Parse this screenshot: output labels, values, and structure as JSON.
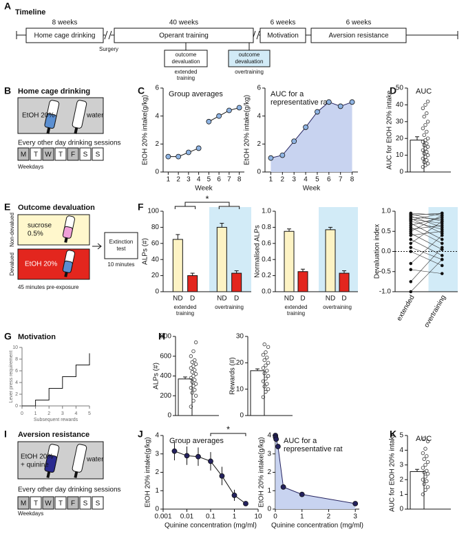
{
  "panels": [
    "A",
    "B",
    "C",
    "D",
    "E",
    "F",
    "G",
    "H",
    "I",
    "J",
    "K"
  ],
  "timeline": {
    "title": "Timeline",
    "weeks": [
      "8 weeks",
      "40 weeks",
      "6 weeks",
      "6 weeks"
    ],
    "phases": [
      "Home cage drinking",
      "Operant training",
      "Motivation",
      "Aversion resistance"
    ],
    "surgery": "Surgery",
    "tests": [
      {
        "label": [
          "outcome",
          "devaluation"
        ],
        "note": [
          "extended",
          "training"
        ]
      },
      {
        "label": [
          "outcome",
          "devaluation"
        ],
        "note": [
          "overtraining"
        ]
      }
    ]
  },
  "home_cage": {
    "title": "Home cage drinking",
    "bottles": [
      "EtOH 20%",
      "water"
    ],
    "schedule": "Every other day drinking sessions",
    "days": [
      "M",
      "T",
      "W",
      "T",
      "F",
      "S",
      "S"
    ],
    "shaded": [
      true,
      false,
      true,
      false,
      true,
      false,
      false
    ],
    "footer": "Weekdays"
  },
  "devaluation": {
    "title": "Outcome devaluation",
    "conditions": [
      "Non-devalued",
      "Devalued"
    ],
    "solutions": [
      [
        "sucrose",
        "0.5%"
      ],
      [
        "EtOH 20%"
      ]
    ],
    "test": [
      "Extinction",
      "test"
    ],
    "duration": "10 minutes",
    "preexposure": "45 minutes pre-exposure"
  },
  "motivation": {
    "title": "Motivation"
  },
  "aversion": {
    "title": "Aversion resistance",
    "bottles": [
      [
        "EtOH 20%",
        "+ quinine"
      ],
      [
        "water"
      ]
    ],
    "schedule": "Every other day drinking sessions",
    "days": [
      "M",
      "T",
      "W",
      "T",
      "F",
      "S",
      "S"
    ],
    "shaded": [
      true,
      false,
      true,
      false,
      true,
      false,
      false
    ],
    "footer": "Weekdays"
  },
  "chart_data": [
    {
      "type": "line",
      "title": [
        "Group averages"
      ],
      "xlabel": "Week",
      "ylabel": "EtOH 20% intake(g/kg)",
      "xlim": [
        0.5,
        8.5
      ],
      "xticks": [
        1,
        2,
        3,
        4,
        5,
        6,
        7,
        8
      ],
      "ylim": [
        0,
        6
      ],
      "yticks": [
        0,
        2,
        4,
        6
      ],
      "series": [
        {
          "color": "#8fb4e3",
          "x": [
            1,
            2,
            3,
            4
          ],
          "values": [
            1.1,
            1.1,
            1.4,
            1.7
          ]
        },
        {
          "color": "#8fb4e3",
          "x": [
            5,
            6,
            7,
            8
          ],
          "values": [
            3.6,
            4.0,
            4.4,
            4.6
          ]
        }
      ]
    },
    {
      "type": "area",
      "title": [
        "AUC for a",
        "representative rat"
      ],
      "xlabel": "Week",
      "ylabel": "EtOH 20% intake(g/kg)",
      "xlim": [
        0.5,
        8.5
      ],
      "xticks": [
        1,
        2,
        3,
        4,
        5,
        6,
        7,
        8
      ],
      "ylim": [
        0,
        6
      ],
      "yticks": [
        0,
        2,
        4,
        6
      ],
      "color": "#8fb4e3",
      "fill_color": "#c8d3f0",
      "x": [
        1,
        2,
        3,
        4,
        5,
        6,
        7,
        8
      ],
      "values": [
        1.0,
        1.2,
        2.2,
        3.2,
        4.3,
        5.0,
        4.7,
        5.0
      ]
    },
    {
      "type": "bar",
      "title": [
        "AUC"
      ],
      "ylabel": "AUC for EtOH 20% intake",
      "ylim": [
        0,
        50
      ],
      "yticks": [
        0,
        10,
        20,
        30,
        40,
        50
      ],
      "color": "#ffffff",
      "values": [
        19
      ],
      "errors": [
        2
      ],
      "points": [
        3,
        4,
        5,
        6,
        7,
        8,
        9,
        10,
        11,
        12,
        13,
        14,
        15,
        16,
        17,
        18,
        19,
        20,
        22,
        24,
        26,
        28,
        30,
        33,
        35,
        38,
        40,
        42
      ]
    },
    {
      "type": "bar",
      "ylabel": "ALPs (#)",
      "ylim": [
        0,
        100
      ],
      "yticks": [
        0,
        20,
        40,
        60,
        80,
        100
      ],
      "categories": [
        "ND",
        "D",
        "ND",
        "D"
      ],
      "values": [
        65,
        20,
        80,
        23
      ],
      "errors": [
        6,
        3,
        5,
        3
      ],
      "colors": [
        "#fdf3c4",
        "#e3261e",
        "#fdf3c4",
        "#e3261e"
      ],
      "groups": [
        [
          "extended",
          "training"
        ],
        [
          "overtraining"
        ]
      ],
      "shaded_group": 1,
      "shade_color": "#d2ebf7",
      "significance": "*"
    },
    {
      "type": "bar",
      "ylabel": "Normalised ALPs",
      "ylim": [
        0,
        1
      ],
      "yticks": [
        {
          "value": 0,
          "label": "0.0"
        },
        0.2,
        0.4,
        0.6,
        0.8,
        {
          "value": 1,
          "label": "1.0"
        }
      ],
      "categories": [
        "ND",
        "D",
        "ND",
        "D"
      ],
      "values": [
        0.75,
        0.25,
        0.77,
        0.23
      ],
      "errors": [
        0.03,
        0.03,
        0.03,
        0.03
      ],
      "colors": [
        "#fdf3c4",
        "#e3261e",
        "#fdf3c4",
        "#e3261e"
      ],
      "groups": [
        [
          "extended",
          "training"
        ],
        [
          "overtraining"
        ]
      ],
      "shaded_group": 1,
      "shade_color": "#d2ebf7"
    },
    {
      "type": "slope",
      "ylabel": "Devaluation index",
      "ylim": [
        -1,
        1
      ],
      "yticks": [
        {
          "value": -1,
          "label": "-1.0"
        },
        -0.5,
        {
          "value": 0,
          "label": "0.0"
        },
        0.5,
        {
          "value": 1,
          "label": "1.0"
        }
      ],
      "categories": [
        "extended",
        "overtraining"
      ],
      "shaded_group": 1,
      "shade_color": "#d2ebf7",
      "values": [
        [
          0.95,
          0.9
        ],
        [
          0.93,
          0.75
        ],
        [
          0.9,
          0.95
        ],
        [
          0.88,
          0.6
        ],
        [
          0.85,
          0.8
        ],
        [
          0.82,
          0.45
        ],
        [
          0.8,
          0.7
        ],
        [
          0.78,
          0.95
        ],
        [
          0.75,
          0.55
        ],
        [
          0.7,
          0.3
        ],
        [
          0.65,
          0.85
        ],
        [
          0.6,
          0.2
        ],
        [
          0.55,
          0.65
        ],
        [
          0.5,
          0.9
        ],
        [
          0.45,
          0.05
        ],
        [
          0.4,
          0.5
        ],
        [
          0.3,
          -0.1
        ],
        [
          0.2,
          0.75
        ],
        [
          0.1,
          -0.2
        ],
        [
          0,
          -0.35
        ],
        [
          -0.3,
          0.4
        ],
        [
          -0.45,
          -0.55
        ],
        [
          -0.75,
          0.1
        ],
        [
          -1,
          -0.2
        ]
      ]
    },
    {
      "type": "step",
      "xlabel": "Subsequent rewards",
      "ylabel": "Lever press requirement",
      "xlim": [
        0,
        5
      ],
      "xticks": [
        0,
        1,
        2,
        3,
        4,
        5
      ],
      "ylim": [
        0,
        10
      ],
      "yticks": [
        0,
        2,
        4,
        6,
        8,
        10
      ],
      "x": [
        1,
        2,
        3,
        4,
        5
      ],
      "values": [
        1,
        3,
        5,
        7,
        9
      ]
    },
    {
      "type": "bar",
      "ylabel": "ALPs (#)",
      "ylim": [
        0,
        800
      ],
      "yticks": [
        0,
        200,
        400,
        600,
        800
      ],
      "color": "#ffffff",
      "values": [
        370
      ],
      "errors": [
        20
      ],
      "points": [
        90,
        150,
        200,
        230,
        260,
        280,
        300,
        320,
        340,
        360,
        380,
        400,
        420,
        440,
        460,
        480,
        500,
        520,
        540,
        560,
        600,
        650,
        740
      ]
    },
    {
      "type": "bar",
      "ylabel": "Rewards (#)",
      "ylim": [
        0,
        30
      ],
      "yticks": [
        0,
        10,
        20,
        30
      ],
      "color": "#ffffff",
      "values": [
        17
      ],
      "errors": [
        0.7
      ],
      "points": [
        7,
        9,
        10,
        11,
        12,
        13,
        14,
        15,
        16,
        17,
        18,
        19,
        20,
        21,
        22,
        23,
        24,
        26,
        27
      ]
    },
    {
      "type": "line",
      "title": [
        "Group averages"
      ],
      "xlabel": "Quinine concentration (mg/ml)",
      "ylabel": "EtOH 20% intake(g/kg)",
      "log_x": true,
      "xlim": [
        0.001,
        10
      ],
      "xticks": [
        0.001,
        0.01,
        0.1,
        1,
        10
      ],
      "ylim": [
        0,
        4
      ],
      "yticks": [
        0,
        1,
        2,
        3,
        4
      ],
      "significance": {
        "label": "*",
        "x": [
          0.1,
          3
        ]
      },
      "series": [
        {
          "color": "#24225e",
          "x": [
            0.003,
            0.01,
            0.03,
            0.1,
            0.3,
            1,
            3
          ],
          "values": [
            3.15,
            2.9,
            2.85,
            2.6,
            1.8,
            0.75,
            0.3
          ],
          "errors": [
            0.5,
            0.5,
            0.5,
            0.5,
            0.5,
            0.3,
            0.1
          ]
        }
      ]
    },
    {
      "type": "area",
      "title": [
        "AUC for a",
        "representative rat"
      ],
      "xlabel": "Quinine concentration (mg/ml)",
      "ylabel": "EtOH 20% intake(g/kg)",
      "xlim": [
        0,
        3.15
      ],
      "xticks": [
        0,
        1,
        2,
        3
      ],
      "ylim": [
        0,
        4
      ],
      "yticks": [
        0,
        1,
        2,
        3,
        4
      ],
      "color": "#24225e",
      "fill_color": "#c8d3f0",
      "x": [
        0.003,
        0.01,
        0.03,
        0.1,
        0.3,
        1,
        3
      ],
      "values": [
        4.0,
        3.9,
        3.8,
        3.4,
        1.2,
        0.8,
        0.3
      ]
    },
    {
      "type": "bar",
      "title": [
        "AUC"
      ],
      "ylabel": "AUC for EtOH 20% intake",
      "ylim": [
        0,
        5
      ],
      "yticks": [
        0,
        1,
        2,
        3,
        4,
        5
      ],
      "color": "#ffffff",
      "values": [
        2.55
      ],
      "errors": [
        0.15
      ],
      "points": [
        1.0,
        1.3,
        1.5,
        1.7,
        1.9,
        2.0,
        2.2,
        2.4,
        2.5,
        2.6,
        2.8,
        3.0,
        3.2,
        3.4,
        3.6,
        3.8,
        4.1,
        4.6,
        4.8
      ]
    }
  ]
}
